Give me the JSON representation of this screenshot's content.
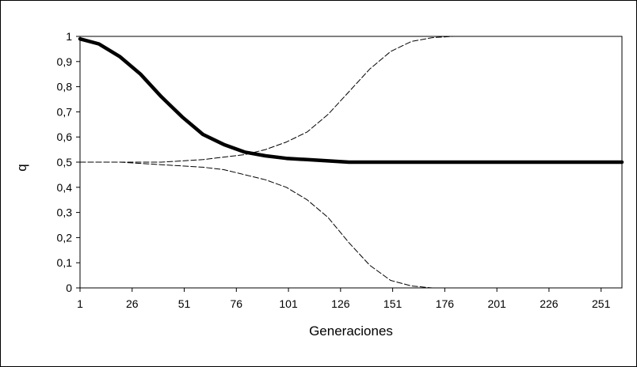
{
  "chart_data": {
    "type": "line",
    "xlabel": "Generaciones",
    "ylabel": "q",
    "xlim": [
      1,
      261
    ],
    "ylim": [
      0,
      1
    ],
    "x_ticks": [
      1,
      26,
      51,
      76,
      101,
      126,
      151,
      176,
      201,
      226,
      251
    ],
    "x_tick_labels": [
      "1",
      "26",
      "51",
      "76",
      "101",
      "126",
      "151",
      "176",
      "201",
      "226",
      "251"
    ],
    "y_ticks": [
      0,
      0.1,
      0.2,
      0.3,
      0.4,
      0.5,
      0.6,
      0.7,
      0.8,
      0.9,
      1
    ],
    "y_tick_labels": [
      "0",
      "0,1",
      "0,2",
      "0,3",
      "0,4",
      "0,5",
      "0,6",
      "0,7",
      "0,8",
      "0,9",
      "1"
    ],
    "grid": false,
    "legend": "none",
    "series": [
      {
        "style": "thick-solid",
        "color": "#000000",
        "x": [
          1,
          10,
          20,
          30,
          40,
          50,
          60,
          70,
          80,
          90,
          100,
          110,
          120,
          130,
          150,
          175,
          200,
          225,
          261
        ],
        "y": [
          0.99,
          0.97,
          0.92,
          0.85,
          0.76,
          0.68,
          0.61,
          0.57,
          0.54,
          0.525,
          0.515,
          0.51,
          0.505,
          0.5,
          0.5,
          0.5,
          0.5,
          0.5,
          0.5
        ]
      },
      {
        "style": "thin-dashed-upper",
        "color": "#000000",
        "x": [
          1,
          20,
          40,
          60,
          70,
          80,
          90,
          100,
          110,
          120,
          130,
          140,
          150,
          160,
          170,
          180,
          200,
          230,
          261
        ],
        "y": [
          0.5,
          0.5,
          0.5,
          0.51,
          0.52,
          0.53,
          0.55,
          0.58,
          0.62,
          0.69,
          0.78,
          0.87,
          0.94,
          0.98,
          0.995,
          1,
          1,
          1,
          1
        ]
      },
      {
        "style": "thin-dashed-lower",
        "color": "#000000",
        "x": [
          1,
          20,
          40,
          60,
          70,
          80,
          90,
          100,
          110,
          120,
          130,
          140,
          150,
          160,
          170
        ],
        "y": [
          0.5,
          0.5,
          0.49,
          0.48,
          0.47,
          0.45,
          0.43,
          0.4,
          0.35,
          0.28,
          0.18,
          0.09,
          0.03,
          0.008,
          0
        ]
      }
    ]
  }
}
